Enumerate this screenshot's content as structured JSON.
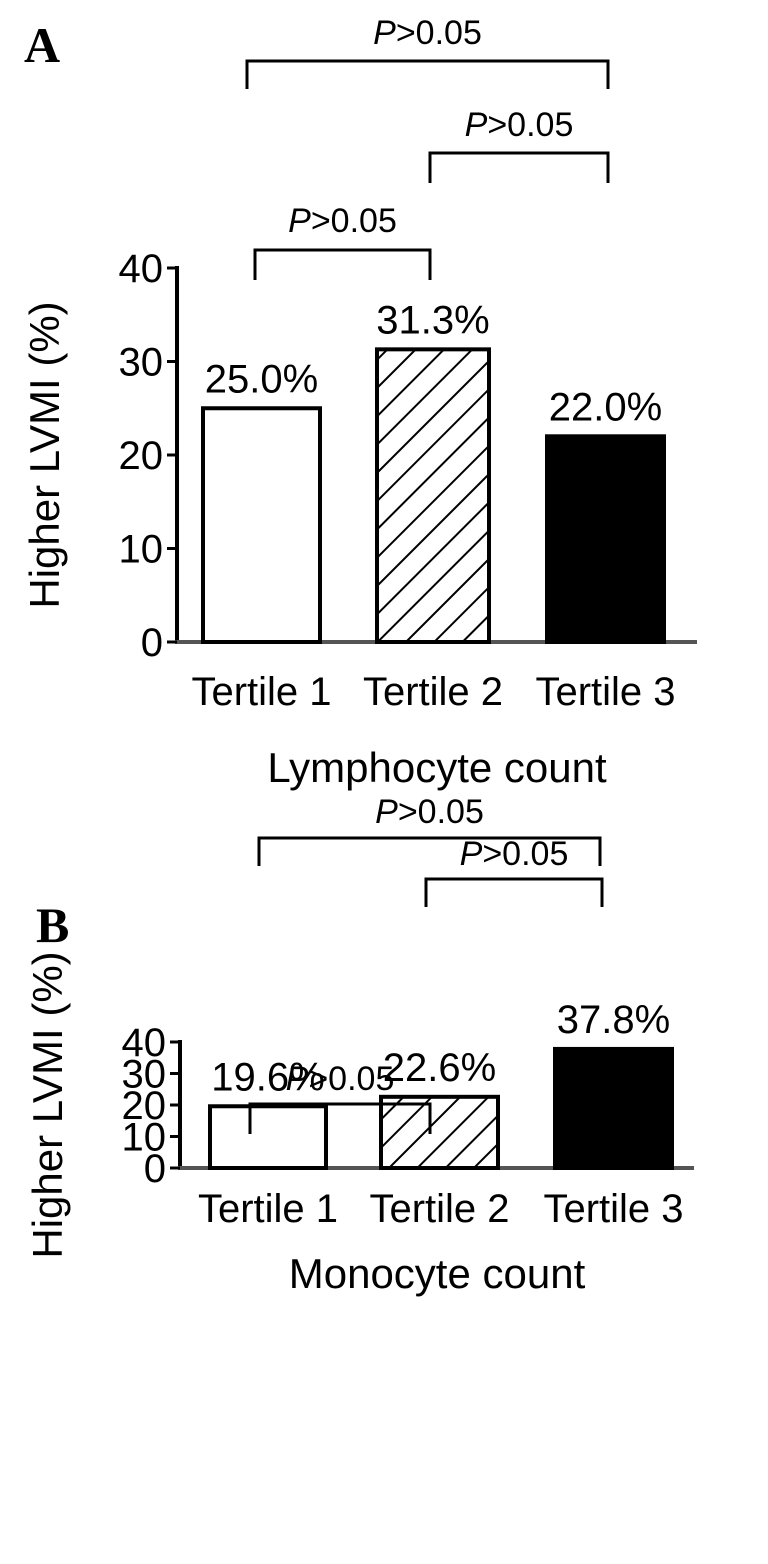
{
  "chart_data": [
    {
      "panel_label": "A",
      "type": "bar",
      "categories": [
        "Tertile 1",
        "Tertile 2",
        "Tertile 3"
      ],
      "values": [
        25.0,
        31.3,
        22.0
      ],
      "data_labels": [
        "25.0%",
        "31.3%",
        "22.0%"
      ],
      "bar_fills": [
        "white",
        "hatched",
        "black"
      ],
      "xlabel": "Lymphocyte count",
      "ylabel": "Higher LVMI (%)",
      "ylim": [
        0,
        40
      ],
      "yticks": [
        "0",
        "10",
        "20",
        "30",
        "40"
      ],
      "grid": false,
      "comparisons": [
        {
          "from": 0,
          "to": 1,
          "p_symbol": "P",
          "p_value": ">0.05"
        },
        {
          "from": 1,
          "to": 2,
          "p_symbol": "P",
          "p_value": ">0.05"
        },
        {
          "from": 0,
          "to": 2,
          "p_symbol": "P",
          "p_value": ">0.05"
        }
      ]
    },
    {
      "panel_label": "B",
      "type": "bar",
      "categories": [
        "Tertile 1",
        "Tertile 2",
        "Tertile 3"
      ],
      "values": [
        19.6,
        22.6,
        37.8
      ],
      "data_labels": [
        "19.6%",
        "22.6%",
        "37.8%"
      ],
      "bar_fills": [
        "white",
        "hatched",
        "black"
      ],
      "xlabel": "Monocyte count",
      "ylabel": "Higher LVMI (%)",
      "ylim": [
        0,
        40
      ],
      "yticks": [
        "0",
        "10",
        "20",
        "30",
        "40"
      ],
      "grid": false,
      "comparisons": [
        {
          "from": 0,
          "to": 1,
          "p_symbol": "P",
          "p_value": ">0.05"
        },
        {
          "from": 1,
          "to": 2,
          "p_symbol": "P",
          "p_value": ">0.05"
        },
        {
          "from": 0,
          "to": 2,
          "p_symbol": "P",
          "p_value": ">0.05"
        }
      ]
    }
  ]
}
